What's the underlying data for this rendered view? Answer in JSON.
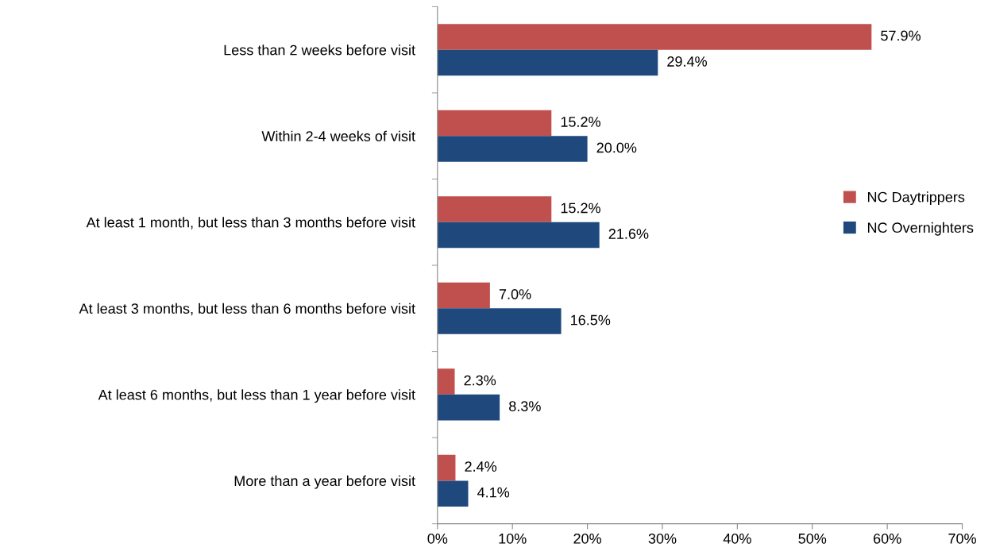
{
  "chart_data": {
    "type": "bar",
    "orientation": "horizontal",
    "categories": [
      "Less than 2 weeks before visit",
      "Within 2-4 weeks of visit",
      "At least 1 month, but less than 3 months before visit",
      "At least 3 months, but less than 6 months before visit",
      "At least 6 months, but less than 1 year before visit",
      "More than a year before visit"
    ],
    "series": [
      {
        "name": "NC Daytrippers",
        "color": "#c0504d",
        "values": [
          57.9,
          15.2,
          15.2,
          7.0,
          2.3,
          2.4
        ],
        "value_labels": [
          "57.9%",
          "15.2%",
          "15.2%",
          "7.0%",
          "2.3%",
          "2.4%"
        ]
      },
      {
        "name": "NC Overnighters",
        "color": "#1f497d",
        "values": [
          29.4,
          20.0,
          21.6,
          16.5,
          8.3,
          4.1
        ],
        "value_labels": [
          "29.4%",
          "20.0%",
          "21.6%",
          "16.5%",
          "8.3%",
          "4.1%"
        ]
      }
    ],
    "xlim": [
      0,
      70
    ],
    "xticks": [
      {
        "value": 0,
        "label": "0%"
      },
      {
        "value": 10,
        "label": "10%"
      },
      {
        "value": 20,
        "label": "20%"
      },
      {
        "value": 30,
        "label": "30%"
      },
      {
        "value": 40,
        "label": "40%"
      },
      {
        "value": 50,
        "label": "50%"
      },
      {
        "value": 60,
        "label": "60%"
      },
      {
        "value": 70,
        "label": "70%"
      }
    ],
    "legend": "right",
    "grid": false
  }
}
